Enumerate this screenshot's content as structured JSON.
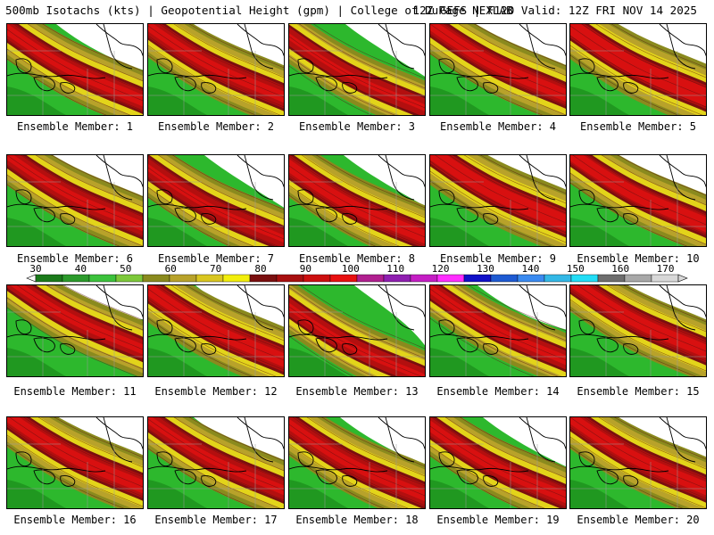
{
  "header": {
    "left": "500mb Isotachs (kts) | Geopotential Height (gpm) | College of DuPage NEXLAB",
    "right": "12Z GEFS | F120 Valid: 12Z FRI NOV 14 2025"
  },
  "colors": {
    "background": "#ffffff",
    "land_fill": "#2db82d",
    "border_lines": "#000000",
    "state_lines": "#9a9a9a"
  },
  "colorbar": {
    "tick_labels": [
      "30",
      "40",
      "50",
      "60",
      "70",
      "80",
      "90",
      "100",
      "110",
      "120",
      "130",
      "140",
      "150",
      "160",
      "170"
    ],
    "colors": [
      "#1b7a1b",
      "#2b9a2b",
      "#3cc23c",
      "#7dc83a",
      "#8a8a1e",
      "#b8a22a",
      "#d9c620",
      "#f2ee0c",
      "#7a0f0f",
      "#a80f0f",
      "#cc0f0f",
      "#e81010",
      "#b01f8f",
      "#8f1fb0",
      "#c41ec4",
      "#ff2dff",
      "#1010c8",
      "#1e5ad2",
      "#3a8af0",
      "#33b8e6",
      "#22ddf6",
      "#6e6e6e",
      "#a8a8a8",
      "#d8d8d8"
    ]
  },
  "panels": [
    {
      "label": "Ensemble Member: 1",
      "jet": "Tilted NW-SE"
    },
    {
      "label": "Ensemble Member: 2",
      "jet": "Tilted NW-SE"
    },
    {
      "label": "Ensemble Member: 3",
      "jet": "Tilted NW-SE"
    },
    {
      "label": "Ensemble Member: 4",
      "jet": "Tilted NW-SE"
    },
    {
      "label": "Ensemble Member: 5",
      "jet": "Tilted NW-SE"
    },
    {
      "label": "Ensemble Member: 6",
      "jet": "Tilted NW-SE"
    },
    {
      "label": "Ensemble Member: 7",
      "jet": "Tilted NW-SE"
    },
    {
      "label": "Ensemble Member: 8",
      "jet": "Tilted NW-SE"
    },
    {
      "label": "Ensemble Member: 9",
      "jet": "Tilted NW-SE"
    },
    {
      "label": "Ensemble Member: 10",
      "jet": "Tilted NW-SE"
    },
    {
      "label": "Ensemble Member: 11",
      "jet": "Tilted NW-SE"
    },
    {
      "label": "Ensemble Member: 12",
      "jet": "Tilted NW-SE"
    },
    {
      "label": "Ensemble Member: 13",
      "jet": "Tilted NW-SE"
    },
    {
      "label": "Ensemble Member: 14",
      "jet": "Tilted NW-SE"
    },
    {
      "label": "Ensemble Member: 15",
      "jet": "Tilted NW-SE"
    },
    {
      "label": "Ensemble Member: 16",
      "jet": "Tilted NW-SE"
    },
    {
      "label": "Ensemble Member: 17",
      "jet": "Tilted NW-SE"
    },
    {
      "label": "Ensemble Member: 18",
      "jet": "Tilted NW-SE"
    },
    {
      "label": "Ensemble Member: 19",
      "jet": "Tilted NW-SE"
    },
    {
      "label": "Ensemble Member: 20",
      "jet": "Tilted NW-SE"
    }
  ]
}
